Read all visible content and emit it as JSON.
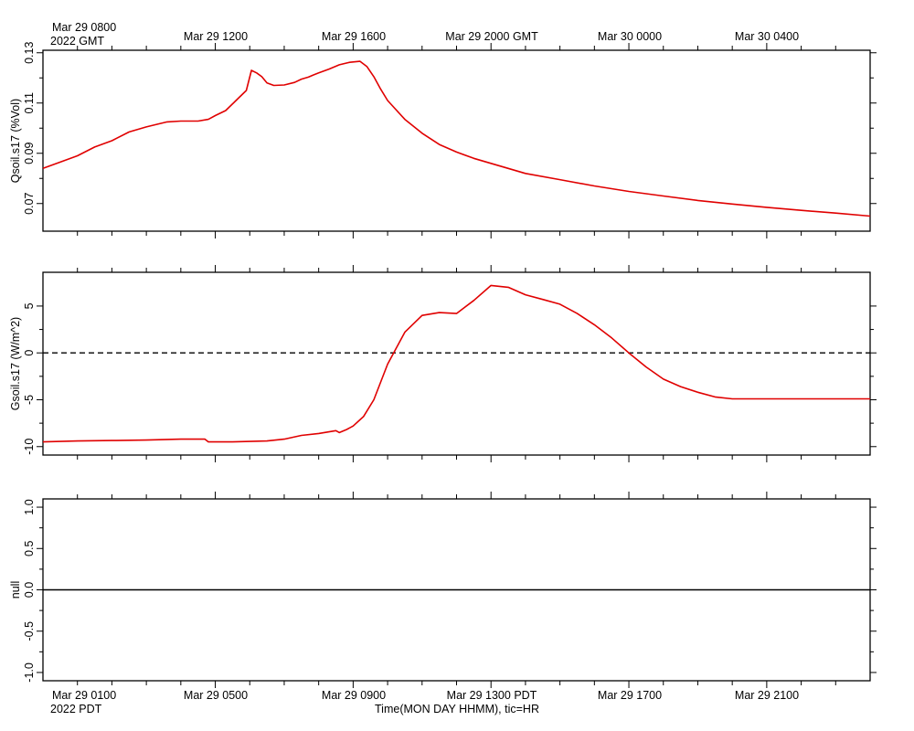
{
  "top_axis": {
    "corner_line1": "Mar 29 0800",
    "corner_line2": "2022 GMT",
    "tick_labels": [
      "Mar 29 1200",
      "Mar 29 1600",
      "Mar 29 2000 GMT",
      "Mar 30 0000",
      "Mar 30 0400"
    ]
  },
  "bottom_axis": {
    "corner_line1": "Mar 29 0100",
    "corner_line2": "2022 PDT",
    "tick_labels": [
      "Mar 29 0500",
      "Mar 29 0900",
      "Mar 29 1300 PDT",
      "Mar 29 1700",
      "Mar 29 2100"
    ],
    "xlabel": "Time(MON DAY HHMM), tic=HR"
  },
  "chart_data": [
    {
      "type": "line",
      "ylabel": "Qsoil.s17 (%Vol)",
      "ylim": [
        0.059,
        0.131
      ],
      "yticks": [
        0.07,
        0.09,
        0.11,
        0.13
      ],
      "ytick_labels": [
        "0.07",
        "0.09",
        "0.11",
        "0.13"
      ],
      "xlim_hours_pdt": [
        0.0,
        24.0
      ],
      "line_color": "#e00000",
      "series": [
        {
          "x": [
            0,
            0.5,
            1,
            1.5,
            2,
            2.5,
            3,
            3.3,
            3.6,
            4,
            4.5,
            4.8,
            5,
            5.3,
            5.6,
            5.9,
            6.05,
            6.2,
            6.35,
            6.5,
            6.7,
            7,
            7.3,
            7.5,
            7.7,
            7.85,
            8,
            8.3,
            8.6,
            8.9,
            9.2,
            9.4,
            9.6,
            9.8,
            10,
            10.5,
            11,
            11.5,
            12,
            12.5,
            13,
            14,
            15,
            16,
            17,
            18,
            19,
            20,
            21,
            22,
            23,
            24
          ],
          "values": [
            0.084,
            0.0865,
            0.089,
            0.0925,
            0.095,
            0.0985,
            0.1005,
            0.1015,
            0.1025,
            0.1028,
            0.1028,
            0.1035,
            0.105,
            0.107,
            0.111,
            0.115,
            0.123,
            0.122,
            0.1205,
            0.118,
            0.117,
            0.1172,
            0.1182,
            0.1195,
            0.1203,
            0.1212,
            0.122,
            0.1235,
            0.1252,
            0.1262,
            0.1266,
            0.1245,
            0.1205,
            0.1155,
            0.111,
            0.1035,
            0.098,
            0.0935,
            0.0905,
            0.088,
            0.086,
            0.082,
            0.0795,
            0.077,
            0.0748,
            0.073,
            0.0712,
            0.0698,
            0.0685,
            0.0673,
            0.0662,
            0.065
          ]
        }
      ]
    },
    {
      "type": "line",
      "ylabel": "Gsoil.s17 (W/m^2)",
      "ylim": [
        -10.9,
        8.6
      ],
      "yticks": [
        -10,
        -5,
        0,
        5
      ],
      "ytick_labels": [
        "-10",
        "-5",
        "0",
        "5"
      ],
      "xlim_hours_pdt": [
        0.0,
        24.0
      ],
      "line_color": "#e00000",
      "zero_line": 0,
      "series": [
        {
          "x": [
            0,
            1,
            2,
            3,
            4,
            4.7,
            4.8,
            5.5,
            6.5,
            7,
            7.5,
            8,
            8.5,
            8.6,
            8.8,
            9,
            9.3,
            9.6,
            10,
            10.5,
            11,
            11.5,
            12,
            12.5,
            13,
            13.5,
            14,
            14.5,
            15,
            15.5,
            16,
            16.5,
            17,
            17.5,
            18,
            18.5,
            19,
            19.5,
            20,
            21,
            22,
            23,
            24
          ],
          "values": [
            -9.5,
            -9.4,
            -9.35,
            -9.3,
            -9.2,
            -9.2,
            -9.5,
            -9.5,
            -9.4,
            -9.2,
            -8.8,
            -8.6,
            -8.3,
            -8.5,
            -8.2,
            -7.8,
            -6.8,
            -5,
            -1.2,
            2.2,
            4,
            4.3,
            4.2,
            5.6,
            7.2,
            7,
            6.2,
            5.7,
            5.2,
            4.2,
            3,
            1.6,
            0,
            -1.5,
            -2.8,
            -3.6,
            -4.2,
            -4.7,
            -4.9,
            -4.9,
            -4.9,
            -4.9,
            -4.9
          ]
        }
      ]
    },
    {
      "type": "line",
      "ylabel": "null",
      "ylim": [
        -1.1,
        1.1
      ],
      "yticks": [
        -1.0,
        -0.5,
        0.0,
        0.5,
        1.0
      ],
      "ytick_labels": [
        "-1.0",
        "-0.5",
        "0.0",
        "0.5",
        "1.0"
      ],
      "xlim_hours_pdt": [
        0.0,
        24.0
      ],
      "line_color": "#000000",
      "series": [
        {
          "x": [
            0,
            24
          ],
          "values": [
            0,
            0
          ]
        }
      ]
    }
  ]
}
